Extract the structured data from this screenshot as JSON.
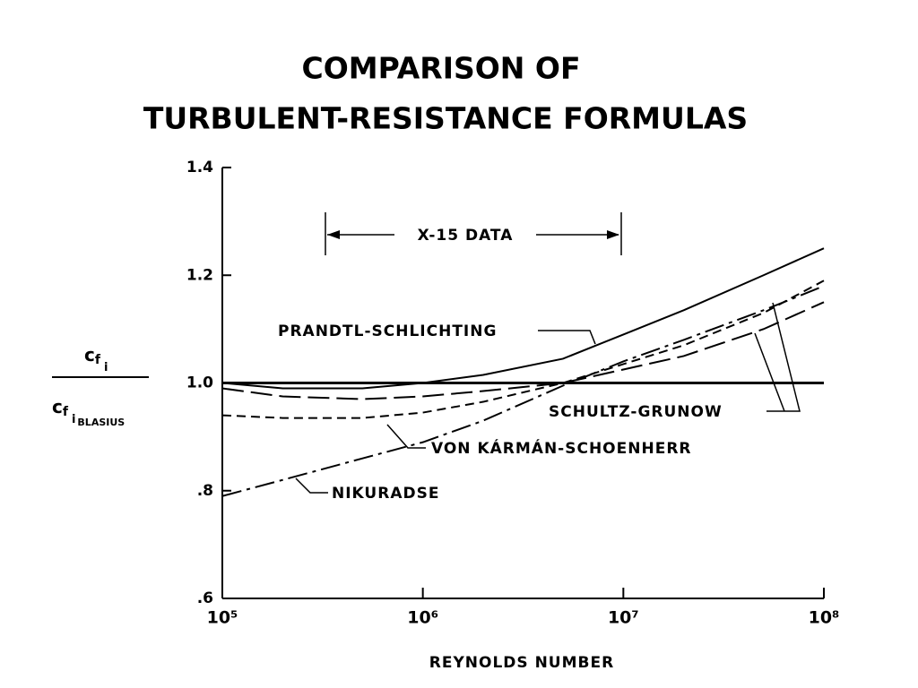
{
  "chart_data": {
    "type": "line",
    "title": [
      "COMPARISON OF",
      "TURBULENT-RESISTANCE FORMULAS"
    ],
    "x_label": "REYNOLDS NUMBER",
    "y_label": {
      "numerator": [
        "c",
        "f",
        "i"
      ],
      "denominator": [
        "c",
        "f",
        "i",
        "BLASIUS"
      ]
    },
    "annotation": "X-15 DATA",
    "x_scale": "log",
    "xlim": [
      100000,
      100000000
    ],
    "xticks": [
      {
        "value": 100000,
        "label": "10⁵"
      },
      {
        "value": 1000000,
        "label": "10⁶"
      },
      {
        "value": 10000000,
        "label": "10⁷"
      },
      {
        "value": 100000000,
        "label": "10⁸"
      }
    ],
    "ylim": [
      0.6,
      1.4
    ],
    "yticks": [
      {
        "value": 0.6,
        "label": ".6"
      },
      {
        "value": 0.8,
        "label": ".8"
      },
      {
        "value": 1,
        "label": "1.0"
      },
      1.2,
      1.4
    ],
    "x": [
      100000,
      200000,
      500000,
      1000000,
      2000000,
      5000000,
      10000000,
      20000000,
      50000000,
      100000000
    ],
    "series": [
      {
        "color": "#000000",
        "style": "solid-thick",
        "values": [
          1.0,
          1.0,
          1.0,
          1.0,
          1.0,
          1.0,
          1.0,
          1.0,
          1.0,
          1.0
        ]
      },
      {
        "name": "PRANDTL-SCHLICHTING",
        "color": "#000000",
        "style": "solid",
        "values": [
          1.0,
          0.99,
          0.99,
          1.0,
          1.015,
          1.045,
          1.09,
          1.135,
          1.2,
          1.25
        ]
      },
      {
        "name": "SCHULTZ-GRUNOW",
        "color": "#000000",
        "style": "long-dash",
        "values": [
          0.99,
          0.975,
          0.97,
          0.975,
          0.985,
          1.0,
          1.025,
          1.05,
          1.1,
          1.15
        ]
      },
      {
        "name": "VON KÁRMÁN-SCHOENHERR",
        "color": "#000000",
        "style": "short-dash",
        "values": [
          0.94,
          0.935,
          0.935,
          0.945,
          0.965,
          1.0,
          1.035,
          1.07,
          1.13,
          1.19
        ]
      },
      {
        "name": "NIKURADSE",
        "color": "#000000",
        "style": "dash-dot",
        "values": [
          0.79,
          0.82,
          0.86,
          0.89,
          0.93,
          0.995,
          1.04,
          1.08,
          1.135,
          1.18
        ]
      }
    ]
  }
}
